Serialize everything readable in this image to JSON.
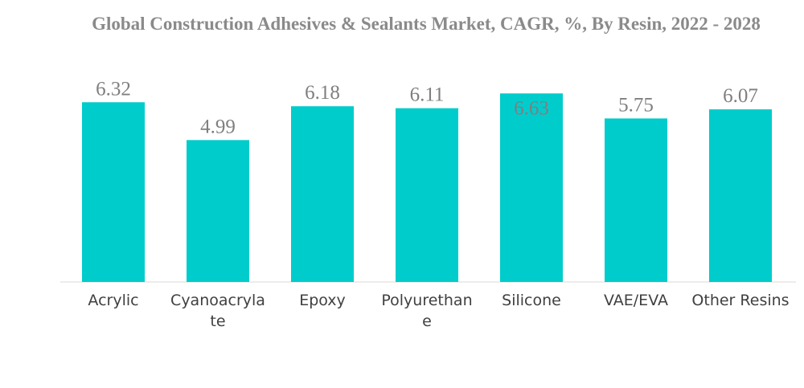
{
  "chart_data": {
    "type": "bar",
    "title": "Global Construction Adhesives & Sealants Market, CAGR, %, By Resin, 2022 - 2028",
    "categories": [
      "Acrylic",
      "Cyanoacrylate",
      "Epoxy",
      "Polyurethane",
      "Silicone",
      "VAE/EVA",
      "Other Resins"
    ],
    "category_lines": [
      [
        "Acrylic"
      ],
      [
        "Cyanoacryla",
        "te"
      ],
      [
        "Epoxy"
      ],
      [
        "Polyurethan",
        "e"
      ],
      [
        "Silicone"
      ],
      [
        "VAE/EVA"
      ],
      [
        "Other Resins"
      ]
    ],
    "values": [
      6.32,
      4.99,
      6.18,
      6.11,
      6.63,
      5.75,
      6.07
    ],
    "value_labels": [
      "6.32",
      "4.99",
      "6.18",
      "6.11",
      "6.63",
      "5.75",
      "6.07"
    ],
    "ylim": [
      0,
      7.5
    ],
    "grid": false,
    "legend": "none",
    "bar_color": "#00cccc"
  }
}
